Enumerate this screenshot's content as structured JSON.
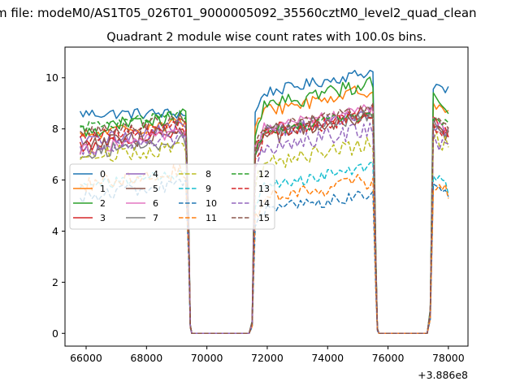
{
  "figure": {
    "suptitle": "m file: modeM0/AS1T05_026T01_9000005092_35560cztM0_level2_quad_clean",
    "offset_text": "+3.886e8"
  },
  "chart_data": {
    "type": "line",
    "title": "Quadrant 2 module wise count rates with 100.0s bins.",
    "xlabel": "",
    "ylabel": "",
    "xlim": [
      65300,
      78650
    ],
    "ylim": [
      -0.5,
      11.2
    ],
    "x_offset": 388600000,
    "x_ticks": [
      66000,
      68000,
      70000,
      72000,
      74000,
      76000,
      78000
    ],
    "x_tick_labels": [
      "66000",
      "68000",
      "70000",
      "72000",
      "74000",
      "76000",
      "78000"
    ],
    "y_ticks": [
      0,
      2,
      4,
      6,
      8,
      10
    ],
    "y_tick_labels": [
      "0",
      "2",
      "4",
      "6",
      "8",
      "10"
    ],
    "grid": false,
    "legend": {
      "placement": "center-left",
      "columns": 4
    },
    "segments": [
      {
        "start": 65800,
        "end": 69300
      },
      {
        "start": 71600,
        "end": 75500
      },
      {
        "start": 77500,
        "end": 78000
      }
    ],
    "drop_points": [
      {
        "x": 69400,
        "fraction": 0.5
      },
      {
        "x": 69450,
        "fraction": 0.04
      },
      {
        "x": 71500,
        "fraction": 0.05
      },
      {
        "x": 71550,
        "fraction": 0.45
      },
      {
        "x": 75600,
        "fraction": 0.3
      },
      {
        "x": 75650,
        "fraction": 0.02
      },
      {
        "x": 77400,
        "fraction": 0.1
      },
      {
        "x": 77450,
        "fraction": 0.55
      }
    ],
    "zero_range": [
      69500,
      71450,
      75700,
      77350
    ],
    "series": [
      {
        "name": "0",
        "color": "#1f77b4",
        "dash": "solid",
        "levels": [
          8.6,
          9.8,
          9.6
        ],
        "trend": [
          0.0,
          0.9,
          -0.3
        ]
      },
      {
        "name": "1",
        "color": "#ff7f0e",
        "dash": "solid",
        "levels": [
          8.0,
          9.1,
          8.9
        ],
        "trend": [
          0.6,
          0.9,
          -0.4
        ]
      },
      {
        "name": "2",
        "color": "#2ca02c",
        "dash": "solid",
        "levels": [
          8.2,
          9.3,
          9.1
        ],
        "trend": [
          0.6,
          1.1,
          -0.5
        ]
      },
      {
        "name": "3",
        "color": "#d62728",
        "dash": "solid",
        "levels": [
          7.6,
          8.3,
          8.1
        ],
        "trend": [
          0.6,
          0.8,
          -0.4
        ]
      },
      {
        "name": "4",
        "color": "#9467bd",
        "dash": "solid",
        "levels": [
          7.8,
          8.2,
          8.0
        ],
        "trend": [
          0.7,
          0.8,
          -0.3
        ]
      },
      {
        "name": "5",
        "color": "#8c564b",
        "dash": "solid",
        "levels": [
          7.6,
          8.0,
          7.9
        ],
        "trend": [
          0.6,
          0.8,
          -0.3
        ]
      },
      {
        "name": "6",
        "color": "#e377c2",
        "dash": "solid",
        "levels": [
          7.5,
          8.4,
          8.2
        ],
        "trend": [
          0.7,
          0.9,
          -0.3
        ]
      },
      {
        "name": "7",
        "color": "#7f7f7f",
        "dash": "solid",
        "levels": [
          7.3,
          8.2,
          8.0
        ],
        "trend": [
          0.5,
          0.6,
          -0.3
        ]
      },
      {
        "name": "8",
        "color": "#bcbd22",
        "dash": "dashed",
        "levels": [
          7.1,
          7.0,
          7.5
        ],
        "trend": [
          0.3,
          0.9,
          -0.4
        ]
      },
      {
        "name": "9",
        "color": "#17becf",
        "dash": "dashed",
        "levels": [
          6.0,
          6.1,
          5.9
        ],
        "trend": [
          0.5,
          0.8,
          -0.5
        ]
      },
      {
        "name": "10",
        "color": "#1f77b4",
        "dash": "dashed",
        "levels": [
          5.6,
          5.1,
          5.5
        ],
        "trend": [
          0.5,
          0.6,
          -0.4
        ]
      },
      {
        "name": "11",
        "color": "#ff7f0e",
        "dash": "dashed",
        "levels": [
          6.1,
          5.6,
          5.7
        ],
        "trend": [
          0.5,
          0.8,
          -0.4
        ]
      },
      {
        "name": "12",
        "color": "#2ca02c",
        "dash": "dashed",
        "levels": [
          8.3,
          8.2,
          8.3
        ],
        "trend": [
          0.5,
          0.7,
          -0.3
        ]
      },
      {
        "name": "13",
        "color": "#d62728",
        "dash": "dashed",
        "levels": [
          7.9,
          8.1,
          8.0
        ],
        "trend": [
          0.6,
          0.9,
          -0.4
        ]
      },
      {
        "name": "14",
        "color": "#9467bd",
        "dash": "dashed",
        "levels": [
          7.4,
          7.6,
          7.4
        ],
        "trend": [
          0.4,
          0.8,
          -0.4
        ]
      },
      {
        "name": "15",
        "color": "#8c564b",
        "dash": "dashed",
        "levels": [
          8.1,
          8.4,
          8.2
        ],
        "trend": [
          0.6,
          0.8,
          -0.3
        ]
      }
    ]
  }
}
